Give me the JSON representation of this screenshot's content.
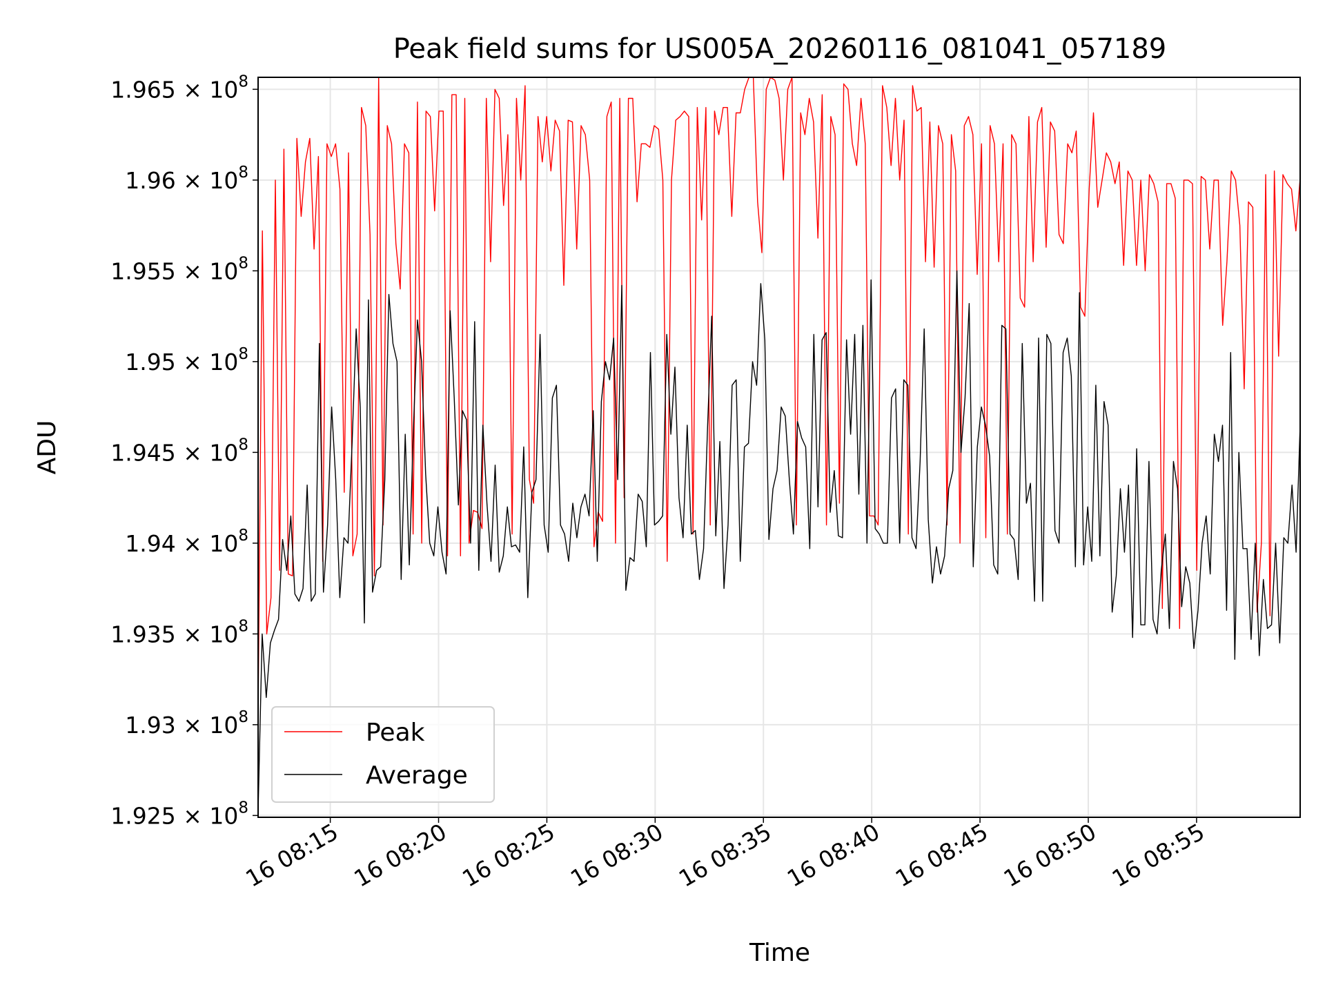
{
  "chart_data": {
    "type": "line",
    "title": "Peak field sums for US005A_20260116_081041_057189",
    "xlabel": "Time",
    "ylabel": "ADU",
    "x_range": [
      "2026-01-16 08:11:40",
      "2026-01-16 08:59:47"
    ],
    "ylim": [
      1.9249,
      1.96566
    ],
    "y_value_multiplier": 100000000,
    "grid": true,
    "legend_position": "lower-left",
    "y_ticks": [
      {
        "value": 1.925,
        "mantissa": "1.925",
        "times": "× 10",
        "exp": "8"
      },
      {
        "value": 1.93,
        "mantissa": "1.93",
        "times": "× 10",
        "exp": "8"
      },
      {
        "value": 1.935,
        "mantissa": "1.935",
        "times": "× 10",
        "exp": "8"
      },
      {
        "value": 1.94,
        "mantissa": "1.94",
        "times": "× 10",
        "exp": "8"
      },
      {
        "value": 1.945,
        "mantissa": "1.945",
        "times": "× 10",
        "exp": "8"
      },
      {
        "value": 1.95,
        "mantissa": "1.95",
        "times": "× 10",
        "exp": "8"
      },
      {
        "value": 1.955,
        "mantissa": "1.955",
        "times": "× 10",
        "exp": "8"
      },
      {
        "value": 1.96,
        "mantissa": "1.96",
        "times": "× 10",
        "exp": "8"
      },
      {
        "value": 1.965,
        "mantissa": "1.965",
        "times": "× 10",
        "exp": "8"
      }
    ],
    "x_ticks": [
      {
        "time": "08:15:00",
        "label": "16 08:15"
      },
      {
        "time": "08:20:00",
        "label": "16 08:20"
      },
      {
        "time": "08:25:00",
        "label": "16 08:25"
      },
      {
        "time": "08:30:00",
        "label": "16 08:30"
      },
      {
        "time": "08:35:00",
        "label": "16 08:35"
      },
      {
        "time": "08:40:00",
        "label": "16 08:40"
      },
      {
        "time": "08:45:00",
        "label": "16 08:45"
      },
      {
        "time": "08:50:00",
        "label": "16 08:50"
      },
      {
        "time": "08:55:00",
        "label": "16 08:55"
      }
    ],
    "series": [
      {
        "name": "Peak",
        "color": "#ff0000",
        "values": [
          1.9305,
          1.9572,
          1.935,
          1.937,
          1.96,
          1.9385,
          1.9617,
          1.9383,
          1.9382,
          1.9623,
          1.958,
          1.961,
          1.9623,
          1.9562,
          1.9613,
          1.939,
          1.962,
          1.9613,
          1.962,
          1.9595,
          1.9428,
          1.9615,
          1.9393,
          1.9405,
          1.964,
          1.963,
          1.957,
          1.9382,
          1.9668,
          1.941,
          1.963,
          1.962,
          1.9565,
          1.954,
          1.962,
          1.9615,
          1.9405,
          1.9643,
          1.94,
          1.9638,
          1.9635,
          1.9583,
          1.9638,
          1.9638,
          1.9393,
          1.9647,
          1.9647,
          1.9393,
          1.9645,
          1.94,
          1.9418,
          1.9417,
          1.9408,
          1.9645,
          1.9555,
          1.965,
          1.9645,
          1.9586,
          1.9625,
          1.9405,
          1.9645,
          1.96,
          1.9652,
          1.9435,
          1.9422,
          1.9635,
          1.961,
          1.9635,
          1.9605,
          1.9633,
          1.9627,
          1.9542,
          1.9633,
          1.9632,
          1.9562,
          1.963,
          1.9625,
          1.96,
          1.9398,
          1.9417,
          1.9412,
          1.9635,
          1.9643,
          1.94,
          1.9645,
          1.9425,
          1.9645,
          1.9645,
          1.9588,
          1.962,
          1.962,
          1.9618,
          1.963,
          1.9628,
          1.96,
          1.939,
          1.96,
          1.9633,
          1.9635,
          1.9638,
          1.9635,
          1.9405,
          1.964,
          1.9578,
          1.964,
          1.941,
          1.9638,
          1.9625,
          1.964,
          1.964,
          1.958,
          1.9637,
          1.9637,
          1.965,
          1.9667,
          1.9667,
          1.9588,
          1.956,
          1.965,
          1.966,
          1.9655,
          1.9645,
          1.96,
          1.965,
          1.966,
          1.941,
          1.9637,
          1.9625,
          1.9645,
          1.9632,
          1.9568,
          1.9647,
          1.941,
          1.9635,
          1.9625,
          1.9422,
          1.9653,
          1.965,
          1.962,
          1.9608,
          1.9645,
          1.962,
          1.9415,
          1.9415,
          1.941,
          1.9652,
          1.964,
          1.9608,
          1.9645,
          1.96,
          1.9633,
          1.9405,
          1.9652,
          1.9638,
          1.964,
          1.9555,
          1.9632,
          1.9552,
          1.963,
          1.962,
          1.941,
          1.9625,
          1.9605,
          1.94,
          1.963,
          1.9635,
          1.9625,
          1.9548,
          1.962,
          1.9403,
          1.963,
          1.962,
          1.9555,
          1.962,
          1.9405,
          1.9625,
          1.962,
          1.9535,
          1.953,
          1.9635,
          1.9555,
          1.9632,
          1.964,
          1.9563,
          1.9632,
          1.9627,
          1.957,
          1.9565,
          1.962,
          1.9615,
          1.9627,
          1.953,
          1.9525,
          1.9595,
          1.9637,
          1.9585,
          1.96,
          1.9615,
          1.961,
          1.9598,
          1.961,
          1.9553,
          1.9605,
          1.96,
          1.9553,
          1.96,
          1.955,
          1.9603,
          1.9598,
          1.9588,
          1.9364,
          1.9598,
          1.9598,
          1.959,
          1.9353,
          1.96,
          1.96,
          1.9598,
          1.9385,
          1.9602,
          1.96,
          1.9562,
          1.96,
          1.96,
          1.952,
          1.9555,
          1.9605,
          1.96,
          1.9575,
          1.9485,
          1.9588,
          1.9585,
          1.9362,
          1.94,
          1.9603,
          1.936,
          1.9605,
          1.9503,
          1.9603,
          1.9598,
          1.9595,
          1.9572,
          1.9601
        ]
      },
      {
        "name": "Average",
        "color": "#000000",
        "values": [
          1.9252,
          1.935,
          1.9315,
          1.9345,
          1.9352,
          1.9358,
          1.9402,
          1.9385,
          1.9415,
          1.9372,
          1.9368,
          1.9375,
          1.9432,
          1.9368,
          1.9372,
          1.951,
          1.9373,
          1.941,
          1.9475,
          1.9435,
          1.937,
          1.9403,
          1.94,
          1.9455,
          1.9518,
          1.9475,
          1.9356,
          1.9534,
          1.9373,
          1.9385,
          1.9387,
          1.9435,
          1.9537,
          1.951,
          1.95,
          1.938,
          1.946,
          1.9388,
          1.9462,
          1.9523,
          1.95,
          1.9438,
          1.94,
          1.9393,
          1.942,
          1.9395,
          1.9383,
          1.9528,
          1.948,
          1.9421,
          1.9473,
          1.9468,
          1.94,
          1.9522,
          1.9385,
          1.9465,
          1.9422,
          1.939,
          1.9443,
          1.9384,
          1.9393,
          1.942,
          1.9398,
          1.9399,
          1.9395,
          1.9453,
          1.937,
          1.9428,
          1.9435,
          1.9515,
          1.941,
          1.9395,
          1.948,
          1.9487,
          1.941,
          1.9405,
          1.939,
          1.9422,
          1.9403,
          1.942,
          1.9427,
          1.9415,
          1.9473,
          1.939,
          1.9478,
          1.95,
          1.949,
          1.9513,
          1.9435,
          1.9542,
          1.9374,
          1.9392,
          1.939,
          1.9427,
          1.9423,
          1.9398,
          1.9505,
          1.941,
          1.9412,
          1.9415,
          1.9515,
          1.946,
          1.9497,
          1.9425,
          1.9403,
          1.9465,
          1.9405,
          1.9407,
          1.938,
          1.9397,
          1.9465,
          1.9525,
          1.9404,
          1.9456,
          1.9375,
          1.941,
          1.9487,
          1.949,
          1.939,
          1.9453,
          1.9455,
          1.95,
          1.9487,
          1.9543,
          1.9512,
          1.9402,
          1.943,
          1.944,
          1.9475,
          1.947,
          1.9435,
          1.9405,
          1.9467,
          1.9458,
          1.9453,
          1.9397,
          1.9515,
          1.942,
          1.9512,
          1.9516,
          1.9417,
          1.944,
          1.9404,
          1.9403,
          1.9512,
          1.946,
          1.9515,
          1.9427,
          1.952,
          1.94,
          1.9545,
          1.9408,
          1.9405,
          1.94,
          1.94,
          1.948,
          1.9485,
          1.94,
          1.949,
          1.9487,
          1.9403,
          1.9397,
          1.9445,
          1.9518,
          1.9413,
          1.9378,
          1.9398,
          1.9383,
          1.9393,
          1.943,
          1.944,
          1.955,
          1.945,
          1.948,
          1.9532,
          1.9387,
          1.9453,
          1.9475,
          1.9465,
          1.9448,
          1.9388,
          1.9383,
          1.952,
          1.9518,
          1.9405,
          1.9402,
          1.938,
          1.951,
          1.9422,
          1.9433,
          1.9368,
          1.9513,
          1.9368,
          1.9515,
          1.951,
          1.9407,
          1.94,
          1.9505,
          1.9513,
          1.9492,
          1.9387,
          1.9538,
          1.9388,
          1.942,
          1.939,
          1.9487,
          1.9393,
          1.9478,
          1.9465,
          1.9362,
          1.9382,
          1.943,
          1.9395,
          1.9432,
          1.9348,
          1.9452,
          1.9355,
          1.9355,
          1.9445,
          1.9358,
          1.935,
          1.9385,
          1.9405,
          1.9353,
          1.9445,
          1.943,
          1.9365,
          1.9387,
          1.9378,
          1.9342,
          1.9363,
          1.94,
          1.9415,
          1.9383,
          1.946,
          1.9445,
          1.9465,
          1.9363,
          1.9505,
          1.9336,
          1.945,
          1.9397,
          1.9397,
          1.9347,
          1.94,
          1.9338,
          1.938,
          1.9353,
          1.9355,
          1.94,
          1.9345,
          1.9403,
          1.94,
          1.9432,
          1.9395,
          1.9465
        ]
      }
    ]
  }
}
